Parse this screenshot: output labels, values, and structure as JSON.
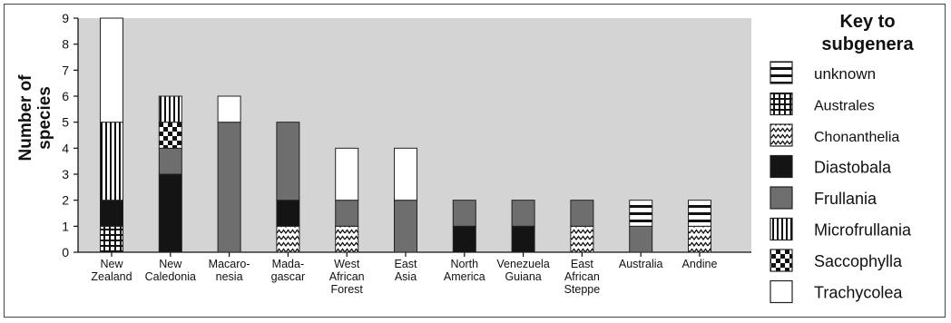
{
  "chart_data": {
    "type": "bar",
    "stacked": true,
    "ylabel": "Number of species",
    "ylim": [
      0,
      9
    ],
    "yticks": [
      "0",
      "1",
      "2",
      "3",
      "4",
      "5",
      "6",
      "7",
      "8",
      "9"
    ],
    "grid": false,
    "plot_background": "#d4d4d4",
    "legend_title": "Key to subgenera",
    "legend_position": "right",
    "categories": [
      [
        "New",
        "Zealand"
      ],
      [
        "New",
        "Caledonia"
      ],
      [
        "Macaro-",
        "nesia"
      ],
      [
        "Mada-",
        "gascar"
      ],
      [
        "West",
        "African",
        "Forest"
      ],
      [
        "East",
        "Asia"
      ],
      [
        "North",
        "America"
      ],
      [
        "Venezuela",
        "Guiana"
      ],
      [
        "East",
        "African",
        "Steppe"
      ],
      [
        "Australia"
      ],
      [
        "Andine"
      ]
    ],
    "series": [
      {
        "name": "Australes",
        "pattern": "grid",
        "values": [
          1,
          0,
          0,
          0,
          0,
          0,
          0,
          0,
          0,
          0,
          0
        ]
      },
      {
        "name": "Chonanthelia",
        "pattern": "zigzag",
        "values": [
          0,
          0,
          0,
          1,
          1,
          0,
          0,
          0,
          1,
          0,
          1
        ]
      },
      {
        "name": "Diastobala",
        "pattern": "black",
        "values": [
          1,
          3,
          0,
          1,
          0,
          0,
          1,
          1,
          0,
          0,
          0
        ]
      },
      {
        "name": "Frullania",
        "pattern": "gray",
        "values": [
          0,
          1,
          5,
          3,
          1,
          2,
          1,
          1,
          1,
          1,
          0
        ]
      },
      {
        "name": "Saccophylla",
        "pattern": "checker",
        "values": [
          0,
          1,
          0,
          0,
          0,
          0,
          0,
          0,
          0,
          0,
          0
        ]
      },
      {
        "name": "Microfrullania",
        "pattern": "vlines",
        "values": [
          3,
          1,
          0,
          0,
          0,
          0,
          0,
          0,
          0,
          0,
          0
        ]
      },
      {
        "name": "unknown",
        "pattern": "hlines",
        "values": [
          0,
          0,
          0,
          0,
          0,
          0,
          0,
          0,
          0,
          1,
          1
        ]
      },
      {
        "name": "Trachycolea",
        "pattern": "white",
        "values": [
          4,
          0,
          1,
          0,
          2,
          2,
          0,
          0,
          0,
          0,
          0
        ]
      }
    ],
    "legend_order": [
      "unknown",
      "Australes",
      "Chonanthelia",
      "Diastobala",
      "Frullania",
      "Microfrullania",
      "Saccophylla",
      "Trachycolea"
    ],
    "colors": {
      "black": "#141414",
      "gray": "#6e6e6e",
      "white": "#ffffff",
      "plot": "#d4d4d4"
    }
  }
}
